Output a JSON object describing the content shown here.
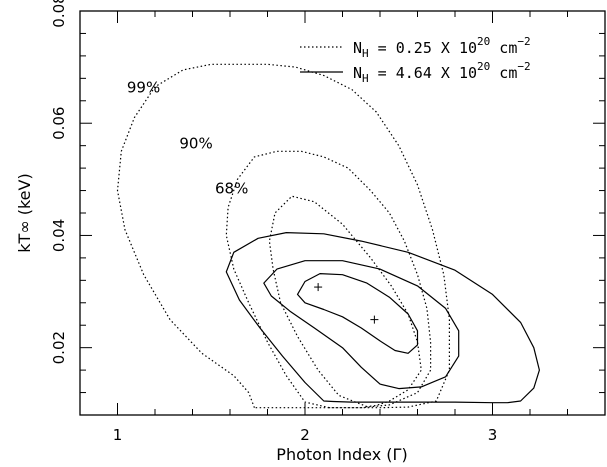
{
  "chart_data": {
    "type": "line",
    "xlabel": "Photon Index (Γ)",
    "ylabel": "kT∞ (keV)",
    "xlim": [
      0.8,
      3.6
    ],
    "ylim": [
      0.008,
      0.08
    ],
    "x_ticks": [
      "1",
      "2",
      "3"
    ],
    "y_ticks": [
      "0.02",
      "0.04",
      "0.06",
      "0.08"
    ],
    "legend_position": "top-right",
    "legend": [
      {
        "label_prefix": "N",
        "label_sub": "H",
        "label_mid": " = 0.25 X 10",
        "label_sup": "20",
        "label_unit": " cm",
        "label_unit_sup": "−2",
        "style": "dotted"
      },
      {
        "label_prefix": "N",
        "label_sub": "H",
        "label_mid": " = 4.64 X 10",
        "label_sup": "20",
        "label_unit": " cm",
        "label_unit_sup": "−2",
        "style": "solid"
      }
    ],
    "annotations": [
      {
        "text": "99%",
        "x": 1.05,
        "y": 0.0655
      },
      {
        "text": "90%",
        "x": 1.33,
        "y": 0.0555
      },
      {
        "text": "68%",
        "x": 1.52,
        "y": 0.0475
      }
    ],
    "best_fit": [
      {
        "x": 2.07,
        "y": 0.0308
      },
      {
        "x": 2.37,
        "y": 0.025
      }
    ],
    "series": [
      {
        "name": "N_H = 0.25 X 10^20 cm^-2, 68%",
        "style": "dotted",
        "x": [
          2.33,
          2.18,
          2.07,
          1.96,
          1.87,
          1.83,
          1.81,
          1.84,
          1.93,
          2.05,
          2.2,
          2.35,
          2.46,
          2.55,
          2.6,
          2.62,
          2.55,
          2.45,
          2.38,
          2.33
        ],
        "y": [
          0.0095,
          0.0115,
          0.016,
          0.022,
          0.028,
          0.034,
          0.039,
          0.044,
          0.047,
          0.046,
          0.042,
          0.036,
          0.031,
          0.026,
          0.021,
          0.016,
          0.0125,
          0.0105,
          0.0097,
          0.0095
        ]
      },
      {
        "name": "N_H = 0.25 X 10^20 cm^-2, 90%",
        "style": "dotted",
        "x": [
          2.13,
          2.0,
          1.9,
          1.8,
          1.7,
          1.62,
          1.58,
          1.59,
          1.64,
          1.73,
          1.85,
          1.98,
          2.1,
          2.23,
          2.35,
          2.45,
          2.53,
          2.6,
          2.65,
          2.67,
          2.67,
          2.6,
          2.45,
          2.3,
          2.2,
          2.13
        ],
        "y": [
          0.0093,
          0.0103,
          0.015,
          0.021,
          0.028,
          0.034,
          0.04,
          0.045,
          0.05,
          0.054,
          0.055,
          0.055,
          0.054,
          0.052,
          0.048,
          0.044,
          0.039,
          0.033,
          0.027,
          0.021,
          0.016,
          0.012,
          0.0098,
          0.0093,
          0.0093,
          0.0093
        ]
      },
      {
        "name": "N_H = 0.25 X 10^20 cm^-2, 99%",
        "style": "dotted",
        "x": [
          1.73,
          1.7,
          1.62,
          1.45,
          1.28,
          1.14,
          1.04,
          1.0,
          1.02,
          1.09,
          1.2,
          1.35,
          1.5,
          1.65,
          1.8,
          1.95,
          2.1,
          2.25,
          2.38,
          2.5,
          2.6,
          2.68,
          2.74,
          2.77,
          2.77,
          2.7,
          2.55,
          2.4,
          2.25,
          2.1,
          1.95,
          1.8,
          1.73
        ],
        "y": [
          0.0093,
          0.012,
          0.015,
          0.019,
          0.025,
          0.033,
          0.041,
          0.048,
          0.055,
          0.061,
          0.0665,
          0.0695,
          0.0705,
          0.0705,
          0.0705,
          0.07,
          0.0685,
          0.066,
          0.062,
          0.056,
          0.049,
          0.041,
          0.033,
          0.025,
          0.016,
          0.0105,
          0.0094,
          0.0093,
          0.0093,
          0.0093,
          0.0093,
          0.0093,
          0.0093
        ]
      },
      {
        "name": "N_H = 4.64 X 10^20 cm^-2, 68%",
        "style": "solid",
        "x": [
          1.96,
          2.0,
          2.08,
          2.2,
          2.33,
          2.45,
          2.55,
          2.6,
          2.6,
          2.55,
          2.48,
          2.4,
          2.3,
          2.2,
          2.1,
          2.0,
          1.96
        ],
        "y": [
          0.0295,
          0.0318,
          0.0332,
          0.033,
          0.0315,
          0.029,
          0.026,
          0.023,
          0.0205,
          0.019,
          0.0195,
          0.0212,
          0.0235,
          0.0255,
          0.0268,
          0.028,
          0.0295
        ]
      },
      {
        "name": "N_H = 4.64 X 10^20 cm^-2, 90%",
        "style": "solid",
        "x": [
          1.78,
          1.85,
          2.0,
          2.2,
          2.4,
          2.6,
          2.75,
          2.82,
          2.82,
          2.75,
          2.62,
          2.5,
          2.4,
          2.3,
          2.2,
          2.05,
          1.92,
          1.82,
          1.78
        ],
        "y": [
          0.0315,
          0.034,
          0.0355,
          0.0355,
          0.034,
          0.031,
          0.027,
          0.023,
          0.0185,
          0.0148,
          0.013,
          0.0127,
          0.0135,
          0.0165,
          0.02,
          0.0235,
          0.0265,
          0.0292,
          0.0315
        ]
      },
      {
        "name": "N_H = 4.64 X 10^20 cm^-2, 99%",
        "style": "solid",
        "x": [
          1.58,
          1.62,
          1.75,
          1.9,
          2.1,
          2.3,
          2.55,
          2.8,
          3.0,
          3.15,
          3.22,
          3.25,
          3.22,
          3.15,
          3.08,
          3.0,
          2.8,
          2.6,
          2.4,
          2.25,
          2.15,
          2.1,
          2.0,
          1.88,
          1.76,
          1.65,
          1.58
        ],
        "y": [
          0.0335,
          0.037,
          0.0395,
          0.0405,
          0.0403,
          0.039,
          0.037,
          0.0338,
          0.0295,
          0.0245,
          0.02,
          0.016,
          0.0128,
          0.0105,
          0.0102,
          0.0102,
          0.0103,
          0.0103,
          0.0103,
          0.0103,
          0.0104,
          0.0105,
          0.0138,
          0.0185,
          0.0235,
          0.0285,
          0.0335
        ]
      }
    ]
  }
}
